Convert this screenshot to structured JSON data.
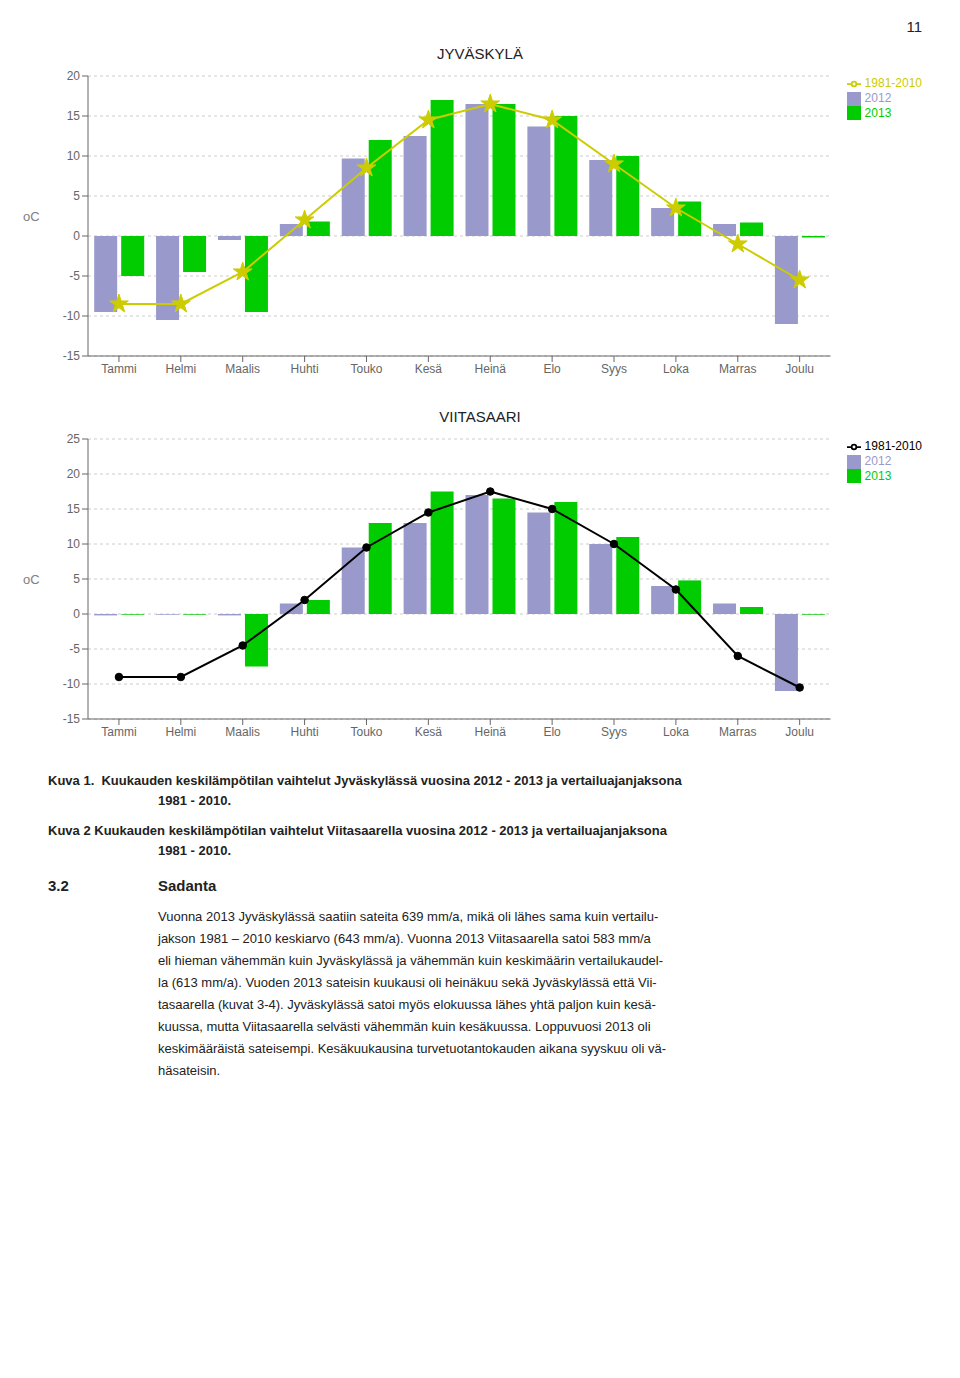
{
  "chart_data": [
    {
      "type": "bar",
      "title": "JYVÄSKYLÄ",
      "y_label": "oC",
      "categories": [
        "Tammi",
        "Helmi",
        "Maalis",
        "Huhti",
        "Touko",
        "Kesä",
        "Heinä",
        "Elo",
        "Syys",
        "Loka",
        "Marras",
        "Joulu"
      ],
      "series": [
        {
          "name": "2012",
          "color": "#9999CC",
          "values": [
            -9.5,
            -10.5,
            -0.5,
            1.5,
            9.7,
            12.5,
            16.5,
            13.7,
            9.5,
            3.5,
            1.5,
            -11.0
          ]
        },
        {
          "name": "2013",
          "color": "#00CC00",
          "values": [
            -5.0,
            -4.5,
            -9.5,
            1.8,
            12.0,
            17.0,
            16.5,
            15.0,
            10.0,
            4.3,
            1.7,
            -0.2
          ]
        },
        {
          "name": "1981-2010",
          "type": "line",
          "color": "#CCCC00",
          "marker": "star",
          "values": [
            -8.5,
            -8.5,
            -4.5,
            2.0,
            8.5,
            14.5,
            16.5,
            14.5,
            9.0,
            3.5,
            -1.0,
            -5.5
          ]
        }
      ],
      "ylim": [
        -15,
        20
      ],
      "yticks": [
        -15,
        -10,
        -5,
        0,
        5,
        10,
        15,
        20
      ],
      "grid": true,
      "legend": "upper right",
      "annotations": [
        "Kuva 1.  Kuukauden keskilämpötilan vaihtelut Jyväskylässä vuosina 2012 - 2013 ja vertailuajanjaksona",
        "1981 - 2010."
      ]
    },
    {
      "type": "bar",
      "title": "VIITASAARI",
      "y_label": "oC",
      "categories": [
        "Tammi",
        "Helmi",
        "Maalis",
        "Huhti",
        "Touko",
        "Kesä",
        "Heinä",
        "Elo",
        "Syys",
        "Loka",
        "Marras",
        "Joulu"
      ],
      "series": [
        {
          "name": "2012",
          "color": "#9999CC",
          "values": [
            -0.2,
            -0.1,
            -0.2,
            1.5,
            9.5,
            13.0,
            17.0,
            14.5,
            10.0,
            4.0,
            1.5,
            -11.0
          ]
        },
        {
          "name": "2013",
          "color": "#00CC00",
          "values": [
            -0.1,
            -0.1,
            -7.5,
            2.0,
            13.0,
            17.5,
            16.5,
            16.0,
            11.0,
            4.8,
            1.0,
            -0.1
          ]
        },
        {
          "name": "1981-2010",
          "type": "line",
          "color": "#000000",
          "marker": "circle",
          "values": [
            -9.0,
            -9.0,
            -4.5,
            2.0,
            9.5,
            14.5,
            17.5,
            15.0,
            10.0,
            3.5,
            -6.0,
            -10.5
          ]
        }
      ],
      "ylim": [
        -15,
        25
      ],
      "yticks": [
        -15,
        -10,
        -5,
        0,
        5,
        10,
        15,
        20,
        25
      ],
      "grid": true,
      "legend": "upper right",
      "annotations": [
        "Kuva 2 Kuukauden keskilämpötilan vaihtelut Viitasaarella vuosina 2012 - 2013 ja vertailuajanjaksona",
        "1981 - 2010."
      ]
    }
  ],
  "page_number": "11",
  "section_heading": {
    "number": "3.2",
    "title": "Sadanta"
  },
  "body_text": [
    "Vuonna 2013 Jyväskylässä saatiin sateita 639 mm/a, mikä oli lähes sama kuin vertailu-",
    "jakson 1981 – 2010 keskiarvo (643 mm/a). Vuonna 2013 Viitasaarella satoi 583 mm/a",
    "eli hieman vähemmän kuin Jyväskylässä ja vähemmän kuin keskimäärin vertailukaudel-",
    "la (613 mm/a). Vuoden 2013 sateisin kuukausi oli heinäkuu sekä Jyväskylässä että Vii-",
    "tasaarella (kuvat 3-4). Jyväskylässä satoi myös elokuussa lähes yhtä paljon kuin kesä-",
    "kuussa, mutta Viitasaarella selvästi vähemmän kuin kesäkuussa. Loppuvuosi 2013 oli",
    "keskimääräistä sateisempi. Kesäkuukausina turvetuotantokauden aikana syyskuu oli vä-",
    "häsateisin."
  ]
}
